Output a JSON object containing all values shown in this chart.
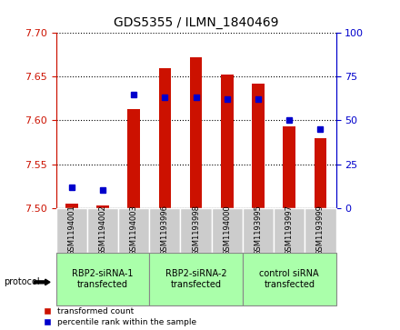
{
  "title": "GDS5355 / ILMN_1840469",
  "samples": [
    "GSM1194001",
    "GSM1194002",
    "GSM1194003",
    "GSM1193996",
    "GSM1193998",
    "GSM1194000",
    "GSM1193995",
    "GSM1193997",
    "GSM1193999"
  ],
  "red_values": [
    7.505,
    7.503,
    7.613,
    7.66,
    7.672,
    7.653,
    7.642,
    7.593,
    7.58
  ],
  "blue_values": [
    12,
    10,
    65,
    63,
    63,
    62,
    62,
    50,
    45
  ],
  "ylim_left": [
    7.5,
    7.7
  ],
  "ylim_right": [
    0,
    100
  ],
  "yticks_left": [
    7.5,
    7.55,
    7.6,
    7.65,
    7.7
  ],
  "yticks_right": [
    0,
    25,
    50,
    75,
    100
  ],
  "groups": [
    {
      "label": "RBP2-siRNA-1\ntransfected",
      "start": 0,
      "end": 3,
      "color": "#aaffaa"
    },
    {
      "label": "RBP2-siRNA-2\ntransfected",
      "start": 3,
      "end": 6,
      "color": "#aaffaa"
    },
    {
      "label": "control siRNA\ntransfected",
      "start": 6,
      "end": 9,
      "color": "#aaffaa"
    }
  ],
  "red_color": "#cc1100",
  "blue_color": "#0000cc",
  "bar_bg_color": "#cccccc",
  "title_color": "#000000",
  "left_axis_color": "#cc1100",
  "right_axis_color": "#0000cc",
  "legend_red_label": "transformed count",
  "legend_blue_label": "percentile rank within the sample",
  "protocol_label": "protocol",
  "bar_width": 0.4
}
